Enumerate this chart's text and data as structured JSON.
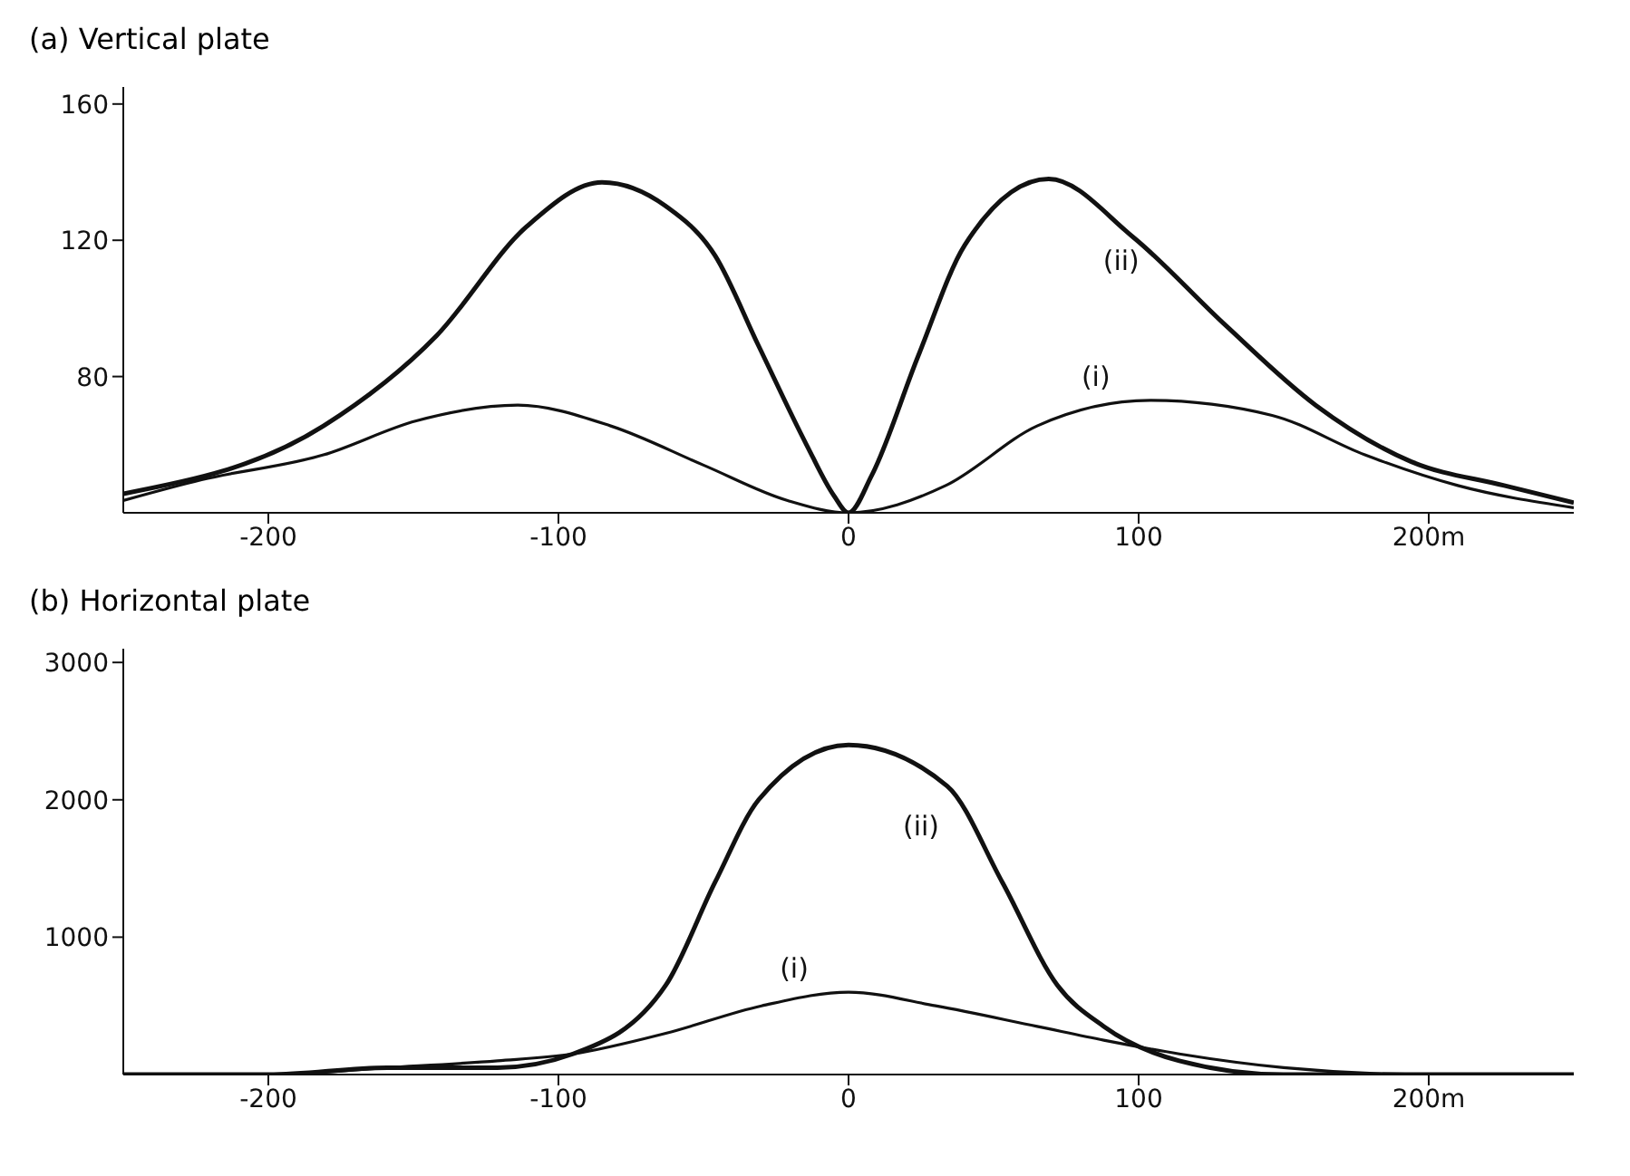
{
  "chart_data": [
    {
      "type": "line",
      "title": "(a) Vertical plate",
      "xlim": [
        -250,
        250
      ],
      "xticks": [
        -200,
        -100,
        0,
        100,
        {
          "value": 200,
          "label": "200m"
        }
      ],
      "ylim": [
        40,
        165
      ],
      "yticks": [
        80,
        120,
        160
      ],
      "marker": "none",
      "line_style": "solid",
      "series": [
        {
          "name": "(ii)",
          "color": "#111111",
          "x": [
            -250,
            -181,
            -142,
            -111,
            -85,
            -63,
            -46,
            -31,
            -14.5,
            -5,
            0,
            8,
            24,
            40,
            69,
            98,
            130,
            161,
            194,
            226,
            250
          ],
          "values": [
            45.6,
            65.5,
            92,
            124,
            137,
            130,
            115.5,
            89,
            60,
            45,
            40,
            51,
            86,
            118.5,
            138,
            121,
            95,
            71.6,
            55,
            48,
            43
          ]
        },
        {
          "name": "(i)",
          "color": "#111111",
          "x": [
            -250,
            -223,
            -181,
            -149,
            -114,
            -82,
            -50,
            -21,
            0,
            33.5,
            65,
            104,
            146,
            178,
            210,
            250
          ],
          "values": [
            43.6,
            49.7,
            57,
            67,
            71.6,
            65.5,
            54,
            43.6,
            40,
            48,
            65.5,
            73,
            68.6,
            57,
            48,
            41.5
          ]
        }
      ]
    },
    {
      "type": "line",
      "title": "(b) Horizontal plate",
      "xlim": [
        -250,
        250
      ],
      "xticks": [
        -200,
        -100,
        0,
        100,
        {
          "value": 200,
          "label": "200m"
        }
      ],
      "ylim": [
        0,
        3100
      ],
      "yticks": [
        1000,
        2000,
        3000
      ],
      "marker": "none",
      "line_style": "solid",
      "series": [
        {
          "name": "(ii)",
          "color": "#111111",
          "x": [
            -250,
            -200,
            -159,
            -121,
            -95,
            -63,
            -46,
            -31,
            0,
            34,
            53,
            72,
            88,
            114,
            150,
            200,
            250
          ],
          "values": [
            0,
            0,
            50,
            50,
            150,
            650,
            1400,
            2000,
            2400,
            2100,
            1400,
            650,
            350,
            100,
            0,
            0,
            0
          ]
        },
        {
          "name": "(i)",
          "color": "#111111",
          "x": [
            -250,
            -200,
            -159,
            -121,
            -95,
            -63,
            -30,
            0,
            30,
            65,
            88,
            114,
            150,
            200,
            250
          ],
          "values": [
            0,
            0,
            50,
            100,
            150,
            300,
            500,
            600,
            500,
            350,
            250,
            150,
            50,
            0,
            0
          ]
        }
      ]
    }
  ]
}
